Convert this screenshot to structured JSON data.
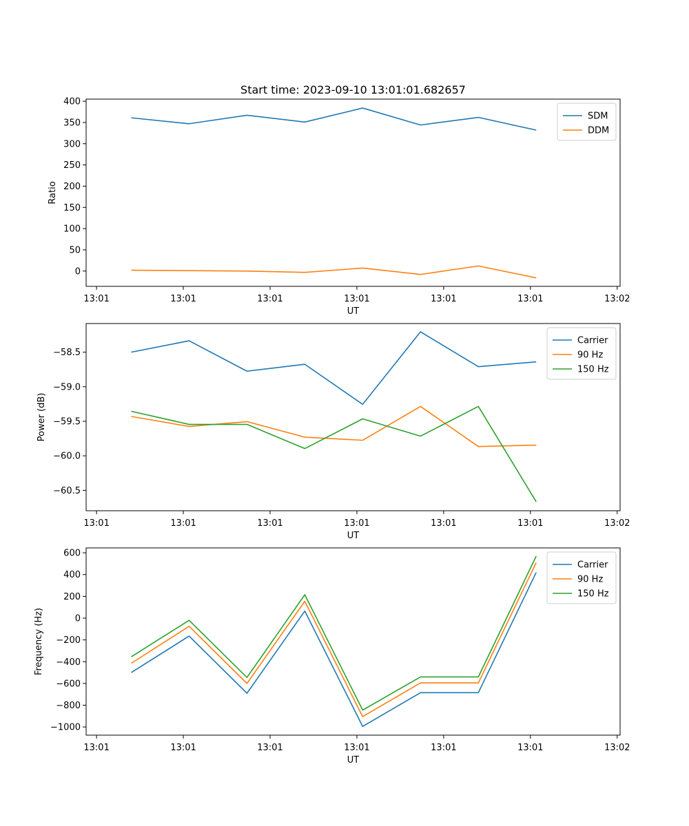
{
  "figure": {
    "title": "Start time: 2023-09-10 13:01:01.682657"
  },
  "chart_data": [
    {
      "type": "line",
      "title": "Start time: 2023-09-10 13:01:01.682657",
      "xlabel": "UT",
      "ylabel": "Ratio",
      "x": [
        1,
        2,
        3,
        4,
        5,
        6,
        7,
        8
      ],
      "xlim": [
        0.22,
        9.45
      ],
      "xticks": [
        0.4,
        1.9,
        3.4,
        4.9,
        6.4,
        7.9,
        9.4
      ],
      "xtick_labels": [
        "13:01",
        "13:01",
        "13:01",
        "13:01",
        "13:01",
        "13:01",
        "13:02"
      ],
      "ylim": [
        -36,
        405
      ],
      "yticks": [
        0,
        50,
        100,
        150,
        200,
        250,
        300,
        350,
        400
      ],
      "ytick_labels": [
        "0",
        "50",
        "100",
        "150",
        "200",
        "250",
        "300",
        "350",
        "400"
      ],
      "legend": "top-right",
      "series": [
        {
          "name": "SDM",
          "color": "#1f77b4",
          "values": [
            361,
            347,
            367,
            351,
            384,
            344,
            362,
            332
          ]
        },
        {
          "name": "DDM",
          "color": "#ff7f0e",
          "values": [
            2,
            1,
            0,
            -3,
            7,
            -8,
            12,
            -16
          ]
        }
      ]
    },
    {
      "type": "line",
      "xlabel": "UT",
      "ylabel": "Power (dB)",
      "x": [
        1,
        2,
        3,
        4,
        5,
        6,
        7,
        8
      ],
      "xlim": [
        0.22,
        9.45
      ],
      "xticks": [
        0.4,
        1.9,
        3.4,
        4.9,
        6.4,
        7.9,
        9.4
      ],
      "xtick_labels": [
        "13:01",
        "13:01",
        "13:01",
        "13:01",
        "13:01",
        "13:01",
        "13:02"
      ],
      "ylim": [
        -60.795,
        -58.085
      ],
      "yticks": [
        -60.5,
        -60.0,
        -59.5,
        -59.0,
        -58.5
      ],
      "ytick_labels": [
        "−60.5",
        "−60.0",
        "−59.5",
        "−59.0",
        "−58.5"
      ],
      "legend": "top-right",
      "series": [
        {
          "name": "Carrier",
          "color": "#1f77b4",
          "values": [
            -58.5,
            -58.335,
            -58.775,
            -58.675,
            -59.255,
            -58.205,
            -58.71,
            -58.64
          ]
        },
        {
          "name": "90 Hz",
          "color": "#ff7f0e",
          "values": [
            -59.43,
            -59.575,
            -59.505,
            -59.73,
            -59.775,
            -59.285,
            -59.865,
            -59.845
          ]
        },
        {
          "name": "150 Hz",
          "color": "#2ca02c",
          "values": [
            -59.355,
            -59.545,
            -59.545,
            -59.895,
            -59.465,
            -59.715,
            -59.285,
            -60.665
          ]
        }
      ]
    },
    {
      "type": "line",
      "xlabel": "UT",
      "ylabel": "Frequency (Hz)",
      "x": [
        1,
        2,
        3,
        4,
        5,
        6,
        7,
        8
      ],
      "xlim": [
        0.22,
        9.45
      ],
      "xticks": [
        0.4,
        1.9,
        3.4,
        4.9,
        6.4,
        7.9,
        9.4
      ],
      "xtick_labels": [
        "13:01",
        "13:01",
        "13:01",
        "13:01",
        "13:01",
        "13:01",
        "13:02"
      ],
      "ylim": [
        -1075,
        645
      ],
      "yticks": [
        -1000,
        -800,
        -600,
        -400,
        -200,
        0,
        200,
        400,
        600
      ],
      "ytick_labels": [
        "−1000",
        "−800",
        "−600",
        "−400",
        "−200",
        "0",
        "200",
        "400",
        "600"
      ],
      "legend": "top-right",
      "series": [
        {
          "name": "Carrier",
          "color": "#1f77b4",
          "values": [
            -500,
            -165,
            -690,
            65,
            -995,
            -685,
            -685,
            420
          ]
        },
        {
          "name": "90 Hz",
          "color": "#ff7f0e",
          "values": [
            -415,
            -75,
            -600,
            155,
            -905,
            -595,
            -595,
            510
          ]
        },
        {
          "name": "150 Hz",
          "color": "#2ca02c",
          "values": [
            -355,
            -20,
            -545,
            215,
            -845,
            -540,
            -540,
            570
          ]
        }
      ]
    }
  ]
}
